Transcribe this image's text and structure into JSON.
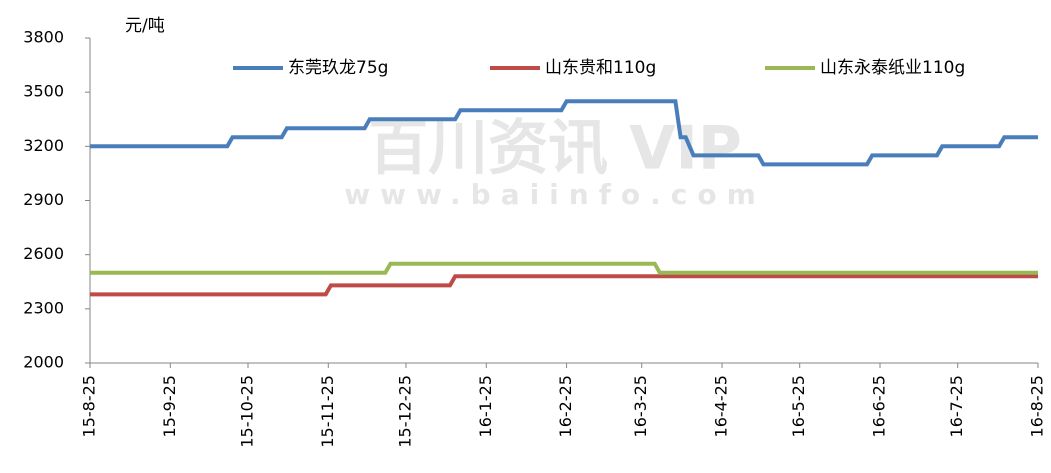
{
  "chart_data": {
    "type": "line",
    "y_label": "元/吨",
    "watermark": "百川资讯 VIP",
    "watermark_url": "www.baiinfo.com",
    "xlim": [
      "15-8-25",
      "16-8-25"
    ],
    "xticks": [
      "15-8-25",
      "15-9-25",
      "15-10-25",
      "15-11-25",
      "15-12-25",
      "16-1-25",
      "16-2-25",
      "16-3-25",
      "16-4-25",
      "16-5-25",
      "16-6-25",
      "16-7-25",
      "16-8-25"
    ],
    "ylim": [
      2000,
      3800
    ],
    "yticks": [
      2000,
      2300,
      2600,
      2900,
      3200,
      3500,
      3800
    ],
    "legend": "top",
    "series": [
      {
        "name": "东莞玖龙75g",
        "color": "#4a7ebb",
        "x": [
          "15-8-25",
          "15-10-17",
          "15-10-19",
          "15-11-7",
          "15-11-9",
          "15-12-9",
          "15-12-11",
          "16-1-13",
          "16-1-15",
          "16-2-23",
          "16-2-25",
          "16-4-7",
          "16-4-9",
          "16-4-11",
          "16-4-14",
          "16-5-9",
          "16-5-11",
          "16-6-20",
          "16-6-22",
          "16-7-17",
          "16-7-19",
          "16-8-10",
          "16-8-12",
          "16-8-25"
        ],
        "values": [
          3200,
          3200,
          3250,
          3250,
          3300,
          3300,
          3350,
          3350,
          3400,
          3400,
          3450,
          3450,
          3250,
          3250,
          3150,
          3150,
          3100,
          3100,
          3150,
          3150,
          3200,
          3200,
          3250,
          3250
        ]
      },
      {
        "name": "山东贵和110g",
        "color": "#be4b48",
        "x": [
          "15-8-25",
          "15-11-24",
          "15-11-26",
          "16-1-11",
          "16-1-13",
          "16-8-25"
        ],
        "values": [
          2380,
          2380,
          2430,
          2430,
          2480,
          2480
        ]
      },
      {
        "name": "山东永泰纸业110g",
        "color": "#98b954",
        "x": [
          "15-8-25",
          "15-12-17",
          "15-12-19",
          "16-3-30",
          "16-4-1",
          "16-8-25"
        ],
        "values": [
          2500,
          2500,
          2550,
          2550,
          2500,
          2500
        ]
      }
    ]
  }
}
